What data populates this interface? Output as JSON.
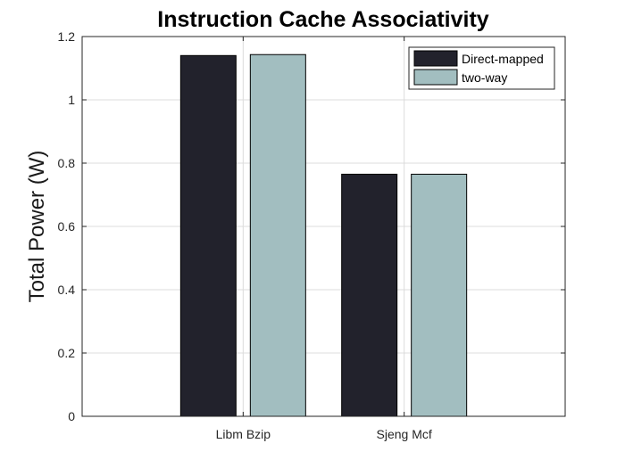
{
  "chart_data": {
    "type": "bar",
    "title": "Instruction Cache Associativity",
    "xlabel": "",
    "ylabel": "Total Power (W)",
    "categories": [
      "Libm Bzip",
      "Sjeng Mcf"
    ],
    "series": [
      {
        "name": "Direct-mapped",
        "values": [
          1.14,
          0.765
        ],
        "color": "#22222c"
      },
      {
        "name": "two-way",
        "values": [
          1.143,
          0.765
        ],
        "color": "#a2bec0"
      }
    ],
    "ylim": [
      0,
      1.2
    ],
    "yticks": [
      0,
      0.2,
      0.4,
      0.6,
      0.8,
      1,
      1.2
    ],
    "ytick_labels": [
      "0",
      "0.2",
      "0.4",
      "0.6",
      "0.8",
      "1",
      "1.2"
    ],
    "grid": true,
    "legend_position": "top-right"
  }
}
